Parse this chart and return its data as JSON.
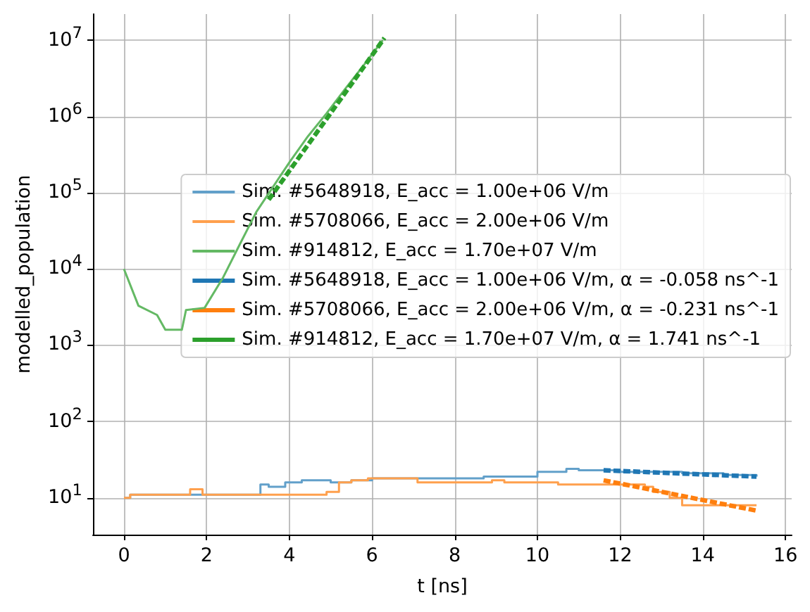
{
  "chart_data": {
    "type": "line",
    "xlabel": "t [ns]",
    "ylabel": "modelled_population",
    "xlim": [
      -0.75,
      16.15
    ],
    "xticks": [
      0,
      2,
      4,
      6,
      8,
      10,
      12,
      14,
      16
    ],
    "ylim": [
      3.3,
      22000000
    ],
    "yticks": [
      {
        "value": 10,
        "label": "10$^{1}$"
      },
      {
        "value": 100,
        "label": "10$^{2}$"
      },
      {
        "value": 1000,
        "label": "10$^{3}$"
      },
      {
        "value": 10000,
        "label": "10$^{4}$"
      },
      {
        "value": 100000,
        "label": "10$^{5}$"
      },
      {
        "value": 1000000,
        "label": "10$^{6}$"
      },
      {
        "value": 10000000,
        "label": "10$^{7}$"
      }
    ],
    "log": "y",
    "grid": true,
    "legend": "right",
    "series": [
      {
        "name": "Sim. #5648918, E_acc = 1.00e+06 V/m",
        "type": "step",
        "line_style": "solid",
        "color": "#62a0ca",
        "x": [
          0,
          0.15,
          3.3,
          3.5,
          3.9,
          4.3,
          5.0,
          5.5,
          6.0,
          8.7,
          10.0,
          10.7,
          11.0,
          12.0,
          13.5,
          14.5,
          15.3
        ],
        "values": [
          10,
          11,
          15,
          14,
          16,
          17,
          16,
          17,
          18,
          19,
          22,
          24,
          23,
          22,
          21,
          20,
          19
        ]
      },
      {
        "name": "Sim. #5708066, E_acc = 2.00e+06 V/m",
        "type": "step",
        "line_style": "solid",
        "color": "#ffa04d",
        "x": [
          0,
          0.15,
          1.6,
          1.9,
          4.9,
          5.2,
          5.5,
          5.9,
          7.1,
          8.9,
          9.2,
          10.5,
          12.6,
          12.8,
          13.2,
          13.5,
          15.3
        ],
        "values": [
          10,
          11,
          13,
          11,
          12,
          16,
          17,
          18,
          16,
          17,
          16,
          15,
          14,
          12,
          10,
          8,
          8
        ]
      },
      {
        "name": "Sim. #914812, E_acc = 1.70e+07 V/m",
        "type": "line",
        "line_style": "solid",
        "color": "#64b964",
        "x": [
          0,
          0.35,
          0.8,
          1.0,
          1.4,
          1.5,
          1.95,
          2.4,
          2.8,
          3.2,
          4.0,
          4.45,
          4.9,
          5.35,
          5.8,
          6.26
        ],
        "values": [
          10000,
          3300,
          2500,
          1600,
          1600,
          2900,
          3100,
          7800,
          21000,
          56000,
          250000,
          550000,
          1100000,
          2300000,
          4700000,
          10000000
        ]
      },
      {
        "name": "Sim. #5648918, E_acc = 1.00e+06 V/m, α = -0.058 ns^-1",
        "type": "line",
        "line_style": "dashed",
        "color": "#1f77b4",
        "x": [
          11.6,
          15.3
        ],
        "values": [
          23,
          19
        ]
      },
      {
        "name": "Sim. #5708066, E_acc = 2.00e+06 V/m, α = -0.231 ns^-1",
        "type": "line",
        "line_style": "dashed",
        "color": "#ff7f0e",
        "x": [
          11.6,
          15.3
        ],
        "values": [
          17,
          6.8
        ]
      },
      {
        "name": "Sim. #914812, E_acc = 1.70e+07 V/m, α = 1.741 ns^-1",
        "type": "line",
        "line_style": "dashed",
        "color": "#2ca02c",
        "x": [
          3.5,
          6.3
        ],
        "values": [
          81000,
          10700000
        ]
      }
    ]
  }
}
